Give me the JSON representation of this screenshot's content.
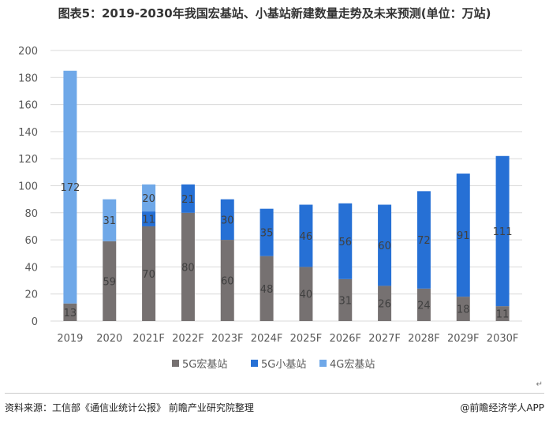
{
  "title": "图表5：2019-2030年我国宏基站、小基站新建数量走势及未来预测(单位：万站)",
  "footer": {
    "source": "资料来源：工信部《通信业统计公报》 前瞻产业研究院整理",
    "brand": "@前瞻经济学人APP",
    "return_mark": "↵"
  },
  "colors": {
    "5g_macro": "#767171",
    "5g_small": "#2670D5",
    "4g_macro": "#6FA8E8",
    "grid": "#D9D9D9",
    "axis_text": "#595959"
  },
  "chart_data": {
    "type": "bar",
    "stacked": true,
    "categories": [
      "2019",
      "2020",
      "2021F",
      "2022F",
      "2023F",
      "2024F",
      "2025F",
      "2026F",
      "2027F",
      "2028F",
      "2029F",
      "2030F"
    ],
    "series": [
      {
        "name": "5G宏基站",
        "color": "#767171",
        "values": [
          13,
          59,
          70,
          80,
          60,
          48,
          40,
          31,
          26,
          24,
          18,
          11
        ]
      },
      {
        "name": "5G小基站",
        "color": "#2670D5",
        "values": [
          0,
          0,
          11,
          21,
          30,
          35,
          46,
          56,
          60,
          72,
          91,
          111
        ]
      },
      {
        "name": "4G宏基站",
        "color": "#6FA8E8",
        "values": [
          172,
          31,
          20,
          0,
          0,
          0,
          0,
          0,
          0,
          0,
          0,
          0
        ]
      }
    ],
    "ylim": [
      0,
      200
    ],
    "yticks": [
      0,
      20,
      40,
      60,
      80,
      100,
      120,
      140,
      160,
      180,
      200
    ],
    "grid": true,
    "legend_position": "bottom",
    "xlabel": "",
    "ylabel": ""
  }
}
